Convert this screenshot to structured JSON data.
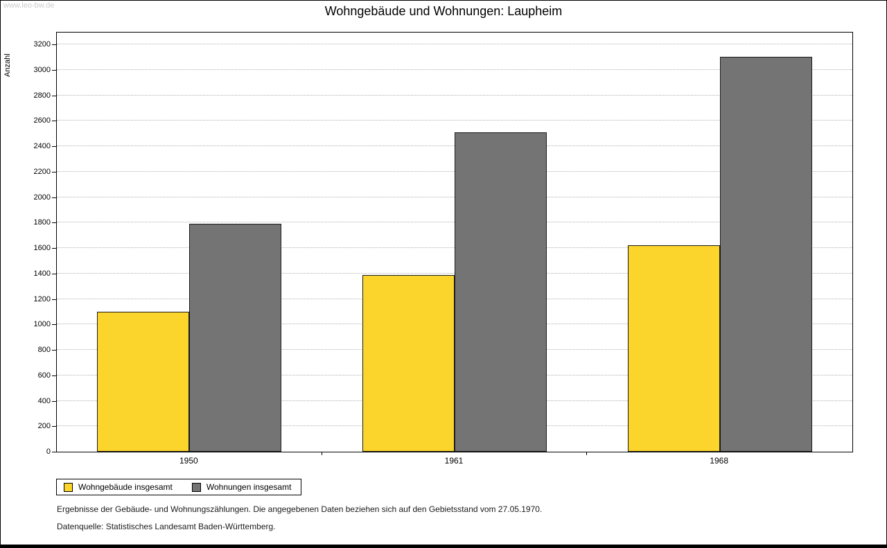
{
  "page": {
    "watermark": "www.leo-bw.de",
    "title": "Wohngebäude und Wohnungen: Laupheim",
    "footnote1": "Ergebnisse der Gebäude- und Wohnungszählungen. Die angegebenen Daten beziehen sich auf den Gebietsstand vom 27.05.1970.",
    "footnote2": "Datenquelle: Statistisches Landesamt Baden-Württemberg."
  },
  "chart_data": {
    "type": "bar",
    "title": "Wohngebäude und Wohnungen: Laupheim",
    "xlabel": "",
    "ylabel": "Anzahl",
    "categories": [
      "1950",
      "1961",
      "1968"
    ],
    "series": [
      {
        "name": "Wohngebäude insgesamt",
        "color": "#FBD42C",
        "values": [
          1100,
          1390,
          1620
        ]
      },
      {
        "name": "Wohnungen insgesamt",
        "color": "#747474",
        "values": [
          1790,
          2510,
          3100
        ]
      }
    ],
    "ylim": [
      0,
      3200
    ],
    "ytick_step": 200,
    "grid": true,
    "legend_position": "bottom-left"
  }
}
